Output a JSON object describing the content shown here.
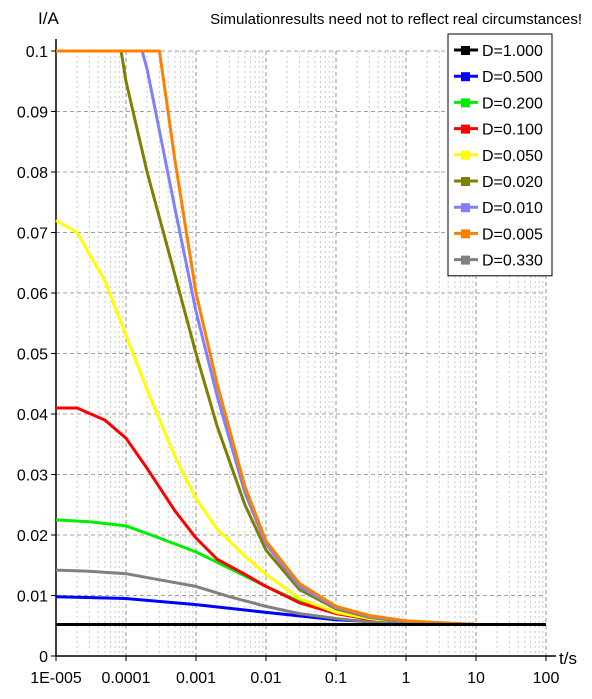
{
  "chart_data": {
    "type": "line",
    "title": "",
    "note": "Simulationresults need not to reflect real circumstances!",
    "xlabel": "t/s",
    "ylabel": "I/A",
    "x_scale": "log",
    "xlim": [
      1e-05,
      100
    ],
    "ylim": [
      0,
      0.1
    ],
    "x_ticks": [
      1e-05,
      0.0001,
      0.001,
      0.01,
      0.1,
      1,
      10,
      100
    ],
    "x_tick_labels": [
      "1E-005",
      "0.0001",
      "0.001",
      "0.01",
      "0.1",
      "1",
      "10",
      "100"
    ],
    "y_ticks": [
      0,
      0.01,
      0.02,
      0.03,
      0.04,
      0.05,
      0.06,
      0.07,
      0.08,
      0.09,
      0.1
    ],
    "y_tick_labels": [
      "0",
      "0.01",
      "0.02",
      "0.03",
      "0.04",
      "0.05",
      "0.06",
      "0.07",
      "0.08",
      "0.09",
      "0.1"
    ],
    "grid": true,
    "legend_position": "top-right",
    "series": [
      {
        "name": "D=1.000",
        "color": "#000000",
        "x": [
          1e-05,
          100
        ],
        "y": [
          0.0052,
          0.0052
        ]
      },
      {
        "name": "D=0.500",
        "color": "#0000ff",
        "x": [
          1e-05,
          0.0001,
          0.001,
          0.01,
          0.1,
          1,
          10,
          100
        ],
        "y": [
          0.0098,
          0.0095,
          0.0085,
          0.0072,
          0.006,
          0.0054,
          0.0052,
          0.0052
        ]
      },
      {
        "name": "D=0.200",
        "color": "#00ee00",
        "x": [
          1e-05,
          3e-05,
          0.0001,
          0.0003,
          0.001,
          0.003,
          0.01,
          0.03,
          0.1,
          0.3,
          1,
          10,
          100
        ],
        "y": [
          0.0225,
          0.0222,
          0.0215,
          0.0195,
          0.0172,
          0.0145,
          0.0115,
          0.009,
          0.0072,
          0.006,
          0.0054,
          0.0052,
          0.0052
        ]
      },
      {
        "name": "D=0.100",
        "color": "#ff0000",
        "x": [
          1e-05,
          2e-05,
          5e-05,
          0.0001,
          0.0002,
          0.0005,
          0.001,
          0.002,
          0.005,
          0.01,
          0.03,
          0.1,
          0.3,
          1,
          10,
          100
        ],
        "y": [
          0.041,
          0.041,
          0.039,
          0.036,
          0.031,
          0.024,
          0.0195,
          0.016,
          0.0135,
          0.0115,
          0.0088,
          0.007,
          0.0061,
          0.0055,
          0.0052,
          0.0052
        ]
      },
      {
        "name": "D=0.050",
        "color": "#ffff00",
        "x": [
          1e-05,
          2e-05,
          5e-05,
          0.0001,
          0.0002,
          0.0005,
          0.001,
          0.002,
          0.005,
          0.01,
          0.03,
          0.1,
          0.3,
          1,
          10,
          100
        ],
        "y": [
          0.072,
          0.07,
          0.062,
          0.053,
          0.044,
          0.033,
          0.026,
          0.021,
          0.0165,
          0.0135,
          0.0095,
          0.0072,
          0.0062,
          0.0055,
          0.0052,
          0.0052
        ]
      },
      {
        "name": "D=0.020",
        "color": "#808000",
        "x": [
          1e-05,
          8.5e-05,
          0.0001,
          0.0002,
          0.0005,
          0.001,
          0.002,
          0.005,
          0.01,
          0.03,
          0.1,
          0.3,
          1,
          10,
          100
        ],
        "y": [
          0.1,
          0.1,
          0.095,
          0.08,
          0.063,
          0.05,
          0.038,
          0.025,
          0.0175,
          0.011,
          0.0078,
          0.0064,
          0.0056,
          0.0052,
          0.0052
        ]
      },
      {
        "name": "D=0.010",
        "color": "#8080ff",
        "x": [
          1e-05,
          0.00017,
          0.0002,
          0.0005,
          0.001,
          0.002,
          0.005,
          0.01,
          0.03,
          0.1,
          0.3,
          1,
          10,
          100
        ],
        "y": [
          0.1,
          0.1,
          0.097,
          0.074,
          0.057,
          0.043,
          0.027,
          0.0185,
          0.0115,
          0.008,
          0.0065,
          0.0057,
          0.0052,
          0.0052
        ]
      },
      {
        "name": "D=0.005",
        "color": "#ff8000",
        "x": [
          1e-05,
          0.0003,
          0.0005,
          0.001,
          0.002,
          0.005,
          0.01,
          0.03,
          0.1,
          0.3,
          1,
          10,
          100
        ],
        "y": [
          0.1,
          0.1,
          0.082,
          0.06,
          0.045,
          0.028,
          0.019,
          0.012,
          0.0082,
          0.0067,
          0.0058,
          0.0052,
          0.0052
        ]
      },
      {
        "name": "D=0.330",
        "color": "#808080",
        "x": [
          1e-05,
          3e-05,
          0.0001,
          0.0003,
          0.001,
          0.003,
          0.01,
          0.03,
          0.1,
          0.3,
          1,
          10,
          100
        ],
        "y": [
          0.0142,
          0.014,
          0.0136,
          0.0126,
          0.0115,
          0.0098,
          0.0082,
          0.007,
          0.0062,
          0.0056,
          0.0053,
          0.0052,
          0.0052
        ]
      }
    ]
  }
}
